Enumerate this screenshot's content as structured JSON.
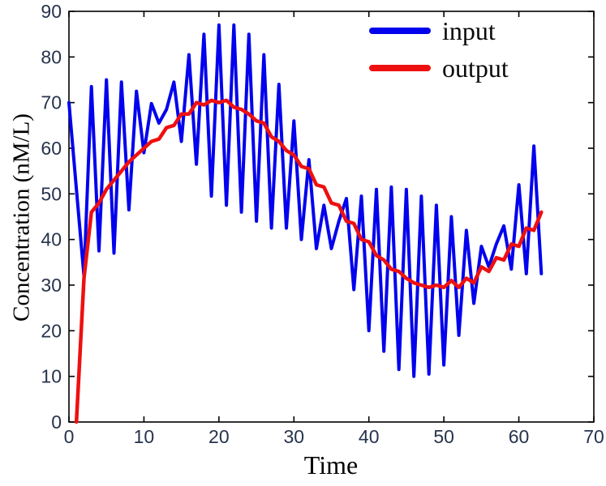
{
  "figure": {
    "background": "#ffffff",
    "axis_color": "#000000",
    "tick_label_color": "#26334d",
    "xlabel": "Time",
    "ylabel": "Concentration (nM/L)"
  },
  "legend": {
    "position": "upper-right",
    "entries": [
      {
        "label": "input",
        "color": "#0202ee"
      },
      {
        "label": "output",
        "color": "#ee1010"
      }
    ]
  },
  "chart_data": {
    "type": "line",
    "title": "",
    "xlabel": "Time",
    "ylabel": "Concentration (nM/L)",
    "xlim": [
      0,
      70
    ],
    "ylim": [
      0,
      90
    ],
    "x_ticks": [
      0,
      10,
      20,
      30,
      40,
      50,
      60,
      70
    ],
    "y_ticks": [
      0,
      10,
      20,
      30,
      40,
      50,
      60,
      70,
      80,
      90
    ],
    "grid": false,
    "legend_position": "upper-right",
    "series": [
      {
        "name": "input",
        "color": "#0202ee",
        "line_width": 4,
        "x": [
          0,
          1,
          2,
          3,
          4,
          5,
          6,
          7,
          8,
          9,
          10,
          11,
          12,
          13,
          14,
          15,
          16,
          17,
          18,
          19,
          20,
          21,
          22,
          23,
          24,
          25,
          26,
          27,
          28,
          29,
          30,
          31,
          32,
          33,
          34,
          35,
          36,
          37,
          38,
          39,
          40,
          41,
          42,
          43,
          44,
          45,
          46,
          47,
          48,
          49,
          50,
          51,
          52,
          53,
          54,
          55,
          56,
          57,
          58,
          59,
          60,
          61,
          62,
          63
        ],
        "values": [
          70,
          51,
          32,
          73.5,
          37.5,
          75,
          37,
          74.5,
          46.5,
          72.5,
          59,
          69.8,
          65.5,
          68.5,
          74.5,
          61.5,
          80.5,
          56.5,
          85,
          49.5,
          87,
          47.5,
          87,
          46,
          85,
          44,
          80.5,
          42.5,
          74,
          42.5,
          66,
          40,
          57.5,
          38,
          47.5,
          38,
          44,
          49,
          29,
          49.5,
          20,
          51,
          15.5,
          51.5,
          11.5,
          51,
          10,
          49.5,
          10.5,
          47.5,
          12.5,
          45,
          19,
          42,
          26,
          38.5,
          34,
          39,
          43,
          33.5,
          52,
          32.5,
          60.5,
          32.5
        ]
      },
      {
        "name": "output",
        "color": "#ee1010",
        "line_width": 4.5,
        "x": [
          1,
          2,
          3,
          4,
          5,
          6,
          7,
          8,
          9,
          10,
          11,
          12,
          13,
          14,
          15,
          16,
          17,
          18,
          19,
          20,
          21,
          22,
          23,
          24,
          25,
          26,
          27,
          28,
          29,
          30,
          31,
          32,
          33,
          34,
          35,
          36,
          37,
          38,
          39,
          40,
          41,
          42,
          43,
          44,
          45,
          46,
          47,
          48,
          49,
          50,
          51,
          52,
          53,
          54,
          55,
          56,
          57,
          58,
          59,
          60,
          61,
          62,
          63
        ],
        "values": [
          0,
          31.5,
          46,
          48,
          51,
          53,
          55,
          57,
          58.5,
          60,
          61.5,
          62,
          64.5,
          65,
          67.5,
          67.5,
          70,
          69.5,
          70.5,
          70,
          70.5,
          69,
          68.5,
          67.5,
          66,
          65.5,
          62.5,
          61.5,
          59.5,
          58.5,
          56,
          55.5,
          52,
          51.5,
          48,
          47.5,
          44,
          43.5,
          40,
          39.5,
          36.5,
          35.5,
          33.5,
          33,
          31.5,
          30.5,
          30,
          29.5,
          30,
          29.5,
          31,
          29.5,
          31.5,
          30.5,
          34,
          33,
          36,
          35.5,
          39,
          38.5,
          42.5,
          42,
          46
        ]
      }
    ]
  }
}
